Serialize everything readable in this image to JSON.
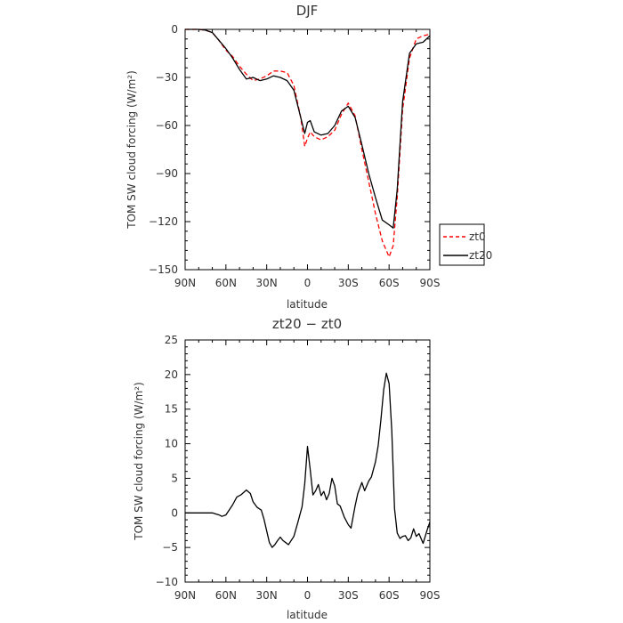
{
  "chart_data": [
    {
      "type": "line",
      "title": "DJF",
      "xlabel": "latitude",
      "ylabel": "TOM SW cloud forcing (W/m²)",
      "xlim": [
        90,
        -90
      ],
      "ylim": [
        -150,
        0
      ],
      "x_ticks": [
        {
          "value": 90,
          "label": "90N"
        },
        {
          "value": 60,
          "label": "60N"
        },
        {
          "value": 30,
          "label": "30N"
        },
        {
          "value": 0,
          "label": "0"
        },
        {
          "value": -30,
          "label": "30S"
        },
        {
          "value": -60,
          "label": "60S"
        },
        {
          "value": -90,
          "label": "90S"
        }
      ],
      "y_ticks": [
        0,
        -30,
        -60,
        -90,
        -120,
        -150
      ],
      "x": [
        90,
        80,
        75,
        70,
        65,
        60,
        55,
        50,
        45,
        40,
        35,
        30,
        25,
        20,
        15,
        10,
        5,
        2,
        0,
        -2,
        -5,
        -10,
        -15,
        -20,
        -25,
        -30,
        -35,
        -40,
        -45,
        -50,
        -55,
        -60,
        -63,
        -66,
        -70,
        -75,
        -80,
        -85,
        -90
      ],
      "series": [
        {
          "name": "zt0",
          "color": "#ff0000",
          "dash": "dashed",
          "values": [
            0,
            0,
            -0.5,
            -2,
            -7,
            -13,
            -17,
            -23,
            -28,
            -32,
            -31,
            -29,
            -26,
            -26,
            -27,
            -35,
            -55,
            -73,
            -68,
            -64,
            -67,
            -69,
            -67,
            -63,
            -53,
            -46,
            -54,
            -75,
            -95,
            -115,
            -132,
            -142,
            -135,
            -105,
            -50,
            -18,
            -6,
            -4,
            -3
          ]
        },
        {
          "name": "zt20",
          "color": "#000000",
          "dash": "solid",
          "values": [
            0,
            0,
            -0.5,
            -2,
            -7,
            -12,
            -18,
            -25,
            -31,
            -30,
            -32,
            -31,
            -29,
            -30,
            -32,
            -38,
            -55,
            -65,
            -58,
            -57,
            -64,
            -66,
            -65,
            -60,
            -51,
            -48,
            -55,
            -72,
            -90,
            -105,
            -119,
            -122,
            -124,
            -100,
            -45,
            -15,
            -9,
            -8,
            -4
          ]
        }
      ],
      "legend": {
        "position": "right",
        "entries": [
          "zt0",
          "zt20"
        ]
      }
    },
    {
      "type": "line",
      "title": "zt20 − zt0",
      "xlabel": "latitude",
      "ylabel": "TOM SW cloud forcing (W/m²)",
      "xlim": [
        90,
        -90
      ],
      "ylim": [
        -10,
        25
      ],
      "x_ticks": [
        {
          "value": 90,
          "label": "90N"
        },
        {
          "value": 60,
          "label": "60N"
        },
        {
          "value": 30,
          "label": "30N"
        },
        {
          "value": 0,
          "label": "0"
        },
        {
          "value": -30,
          "label": "30S"
        },
        {
          "value": -60,
          "label": "60S"
        },
        {
          "value": -90,
          "label": "90S"
        }
      ],
      "y_ticks": [
        25,
        20,
        15,
        10,
        5,
        0,
        -5,
        -10
      ],
      "x": [
        90,
        80,
        75,
        70,
        65,
        63,
        60,
        58,
        55,
        52,
        49,
        45,
        42,
        40,
        37,
        34,
        32,
        28,
        26,
        24,
        22,
        20,
        18,
        16,
        14,
        10,
        7,
        4,
        2,
        0,
        -2,
        -4,
        -6,
        -8,
        -10,
        -12,
        -14,
        -16,
        -18,
        -20,
        -22,
        -24,
        -27,
        -30,
        -32,
        -35,
        -37,
        -40,
        -42,
        -45,
        -47,
        -50,
        -52,
        -54,
        -56,
        -58,
        -60,
        -62,
        -64,
        -66,
        -68,
        -70,
        -72,
        -74,
        -76,
        -78,
        -80,
        -82,
        -85,
        -88,
        -90
      ],
      "series": [
        {
          "name": "",
          "color": "#000000",
          "dash": "solid",
          "values": [
            0,
            0,
            0,
            0,
            -0.3,
            -0.5,
            -0.3,
            0.3,
            1.2,
            2.3,
            2.6,
            3.3,
            2.8,
            1.6,
            0.8,
            0.4,
            -0.9,
            -4.3,
            -5,
            -4.6,
            -4,
            -3.5,
            -4,
            -4.3,
            -4.6,
            -3.4,
            -1.3,
            0.9,
            4.2,
            9.6,
            6.2,
            2.6,
            3.2,
            4.1,
            2.5,
            3.1,
            1.9,
            2.8,
            5,
            3.9,
            1.3,
            1,
            -0.6,
            -1.7,
            -2.2,
            1,
            2.8,
            4.4,
            3.2,
            4.6,
            5.2,
            7.4,
            9.7,
            13.5,
            17.8,
            20.2,
            18.7,
            11.9,
            0.6,
            -2.9,
            -3.7,
            -3.4,
            -3.3,
            -4,
            -3.6,
            -2.3,
            -3.4,
            -3,
            -4.4,
            -2.5,
            -1.3
          ]
        }
      ]
    }
  ]
}
